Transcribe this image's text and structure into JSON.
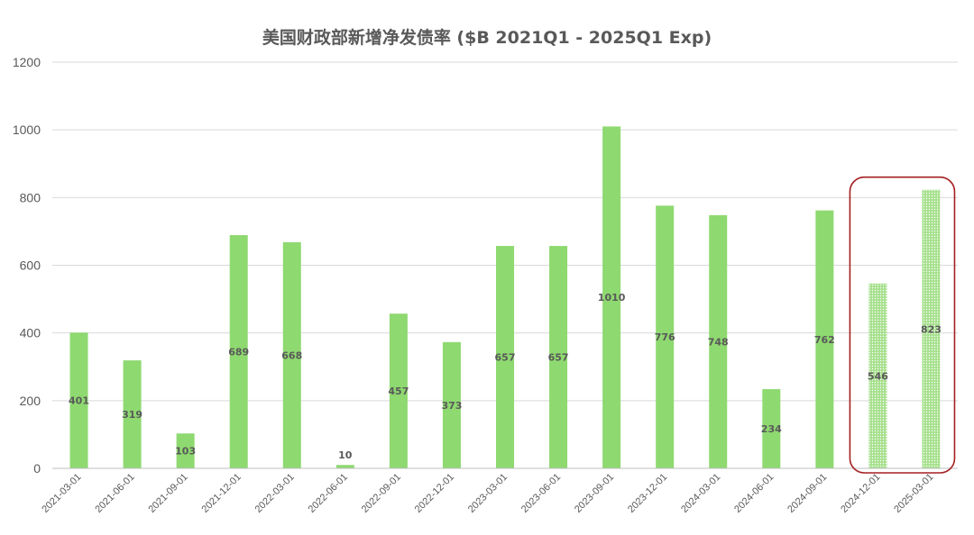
{
  "chart_data": {
    "type": "bar",
    "title": "美国财政部新增净发债率 ($B 2021Q1 - 2025Q1 Exp)",
    "categories": [
      "2021-03-01",
      "2021-06-01",
      "2021-09-01",
      "2021-12-01",
      "2022-03-01",
      "2022-06-01",
      "2022-09-01",
      "2022-12-01",
      "2023-03-01",
      "2023-06-01",
      "2023-09-01",
      "2023-12-01",
      "2024-03-01",
      "2024-06-01",
      "2024-09-01",
      "2024-12-01",
      "2025-03-01"
    ],
    "values": [
      401,
      319,
      103,
      689,
      668,
      10,
      457,
      373,
      657,
      657,
      1010,
      776,
      748,
      234,
      762,
      546,
      823
    ],
    "data_labels": [
      "401",
      "319",
      "103",
      "689",
      "668",
      "10",
      "457",
      "373",
      "657",
      "657",
      "1010",
      "776",
      "748",
      "234",
      "762",
      "546",
      "823"
    ],
    "yticks": [
      "0",
      "200",
      "400",
      "600",
      "800",
      "1000",
      "1200"
    ],
    "ylim": [
      0,
      1200
    ],
    "grid": true,
    "legend": "none",
    "expected_from_index": 15,
    "highlight": "last two bars (expected values) enclosed in a rounded red box",
    "colors": {
      "bar": "#8ed970",
      "bar_expected": "#a6e08c",
      "highlight_box": "#a51f22",
      "grid": "#d9d9d9",
      "text": "#595959"
    }
  }
}
